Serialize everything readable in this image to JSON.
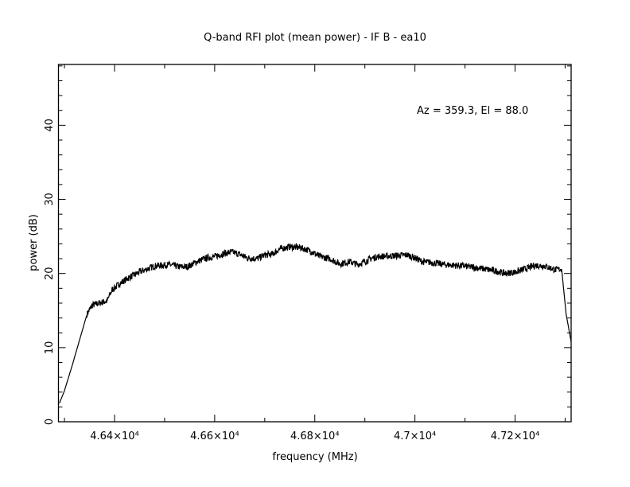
{
  "chart_data": {
    "type": "line",
    "title": "Q-band RFI plot (mean power) - IF B - ea10",
    "xlabel": "frequency (MHz)",
    "ylabel": "power (dB)",
    "annotation": "Az = 359.3, El = 88.0",
    "xlim": [
      46288,
      47312
    ],
    "ylim": [
      0,
      48.2
    ],
    "grid": false,
    "x_ticks": [
      {
        "value": 46400,
        "label": "4.64×10⁴"
      },
      {
        "value": 46600,
        "label": "4.66×10⁴"
      },
      {
        "value": 46800,
        "label": "4.68×10⁴"
      },
      {
        "value": 47000,
        "label": "4.7×10⁴"
      },
      {
        "value": 47200,
        "label": "4.72×10⁴"
      }
    ],
    "y_ticks": [
      {
        "value": 0,
        "label": "0"
      },
      {
        "value": 10,
        "label": "10"
      },
      {
        "value": 20,
        "label": "20"
      },
      {
        "value": 30,
        "label": "30"
      },
      {
        "value": 40,
        "label": "40"
      }
    ],
    "series": [
      {
        "name": "mean power",
        "color": "#000000",
        "x": [
          46290,
          46300,
          46315,
          46330,
          46345,
          46355,
          46370,
          46385,
          46395,
          46410,
          46425,
          46450,
          46480,
          46510,
          46530,
          46545,
          46565,
          46580,
          46600,
          46620,
          46635,
          46650,
          46665,
          46685,
          46700,
          46715,
          46730,
          46750,
          46770,
          46790,
          46810,
          46830,
          46850,
          46870,
          46885,
          46900,
          46915,
          46930,
          46960,
          46985,
          47000,
          47015,
          47030,
          47060,
          47100,
          47140,
          47165,
          47180,
          47200,
          47220,
          47240,
          47260,
          47280,
          47293,
          47302,
          47312
        ],
        "y": [
          2.5,
          4.2,
          7.5,
          11,
          14.5,
          15.7,
          16.0,
          16.3,
          17.8,
          18.6,
          19.3,
          20.2,
          21.0,
          21.2,
          20.9,
          20.9,
          21.6,
          22.0,
          22.3,
          22.7,
          22.9,
          22.6,
          22.1,
          22.0,
          22.5,
          22.6,
          23.3,
          23.6,
          23.5,
          23.1,
          22.3,
          22.0,
          21.3,
          21.6,
          21.2,
          21.6,
          22.1,
          22.3,
          22.4,
          22.5,
          22.1,
          21.6,
          21.5,
          21.2,
          21.0,
          20.6,
          20.3,
          20.0,
          20.2,
          20.6,
          21.1,
          21.0,
          20.5,
          20.6,
          14.5,
          10.8
        ]
      }
    ]
  }
}
